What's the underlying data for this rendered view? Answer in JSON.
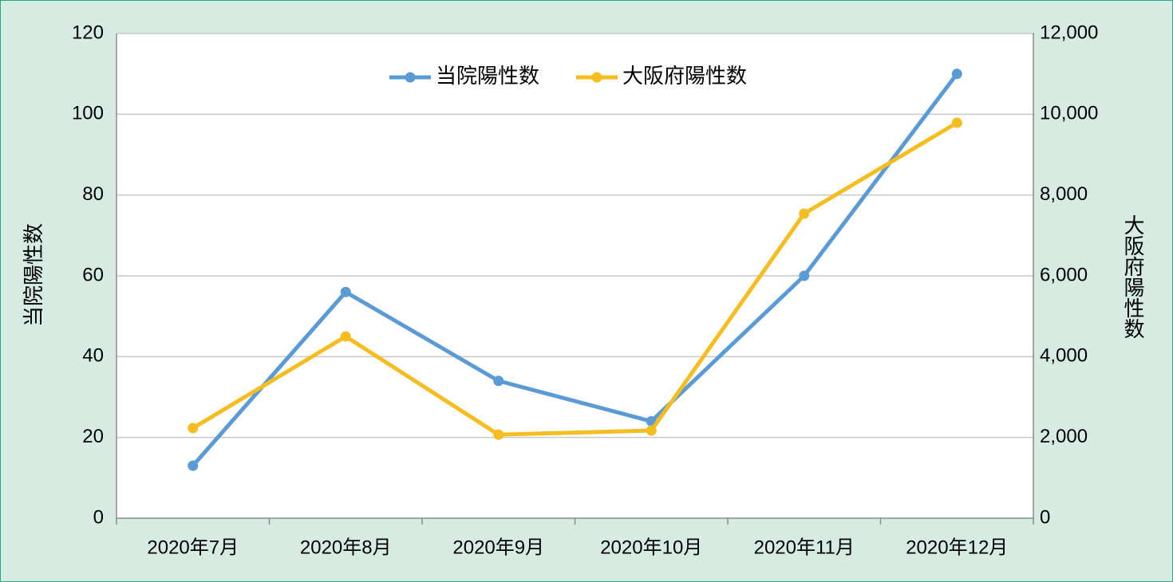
{
  "chart_data": {
    "type": "line",
    "categories": [
      "2020年7月",
      "2020年8月",
      "2020年9月",
      "2020年10月",
      "2020年11月",
      "2020年12月"
    ],
    "series": [
      {
        "name": "当院陽性数",
        "color": "#5b9bd5",
        "values": [
          13,
          56,
          34,
          24,
          60,
          110
        ]
      },
      {
        "name": "大阪府陽性数",
        "color": "#f5bd1f",
        "axis": "y2",
        "values": [
          2230,
          4500,
          2070,
          2170,
          7540,
          9790
        ]
      }
    ],
    "y_label": "当院陽性数",
    "y2_label": "大阪府陽性数",
    "ylim": [
      0,
      120
    ],
    "yticks": [
      0,
      20,
      40,
      60,
      80,
      100,
      120
    ],
    "y2lim": [
      0,
      12000
    ],
    "y2ticks": [
      0,
      {
        "value": 2000,
        "label": "2,000"
      },
      {
        "value": 4000,
        "label": "4,000"
      },
      {
        "value": 6000,
        "label": "6,000"
      },
      {
        "value": 8000,
        "label": "8,000"
      },
      {
        "value": 10000,
        "label": "10,000"
      },
      {
        "value": 12000,
        "label": "12,000"
      }
    ],
    "grid": true,
    "legend": "top"
  }
}
